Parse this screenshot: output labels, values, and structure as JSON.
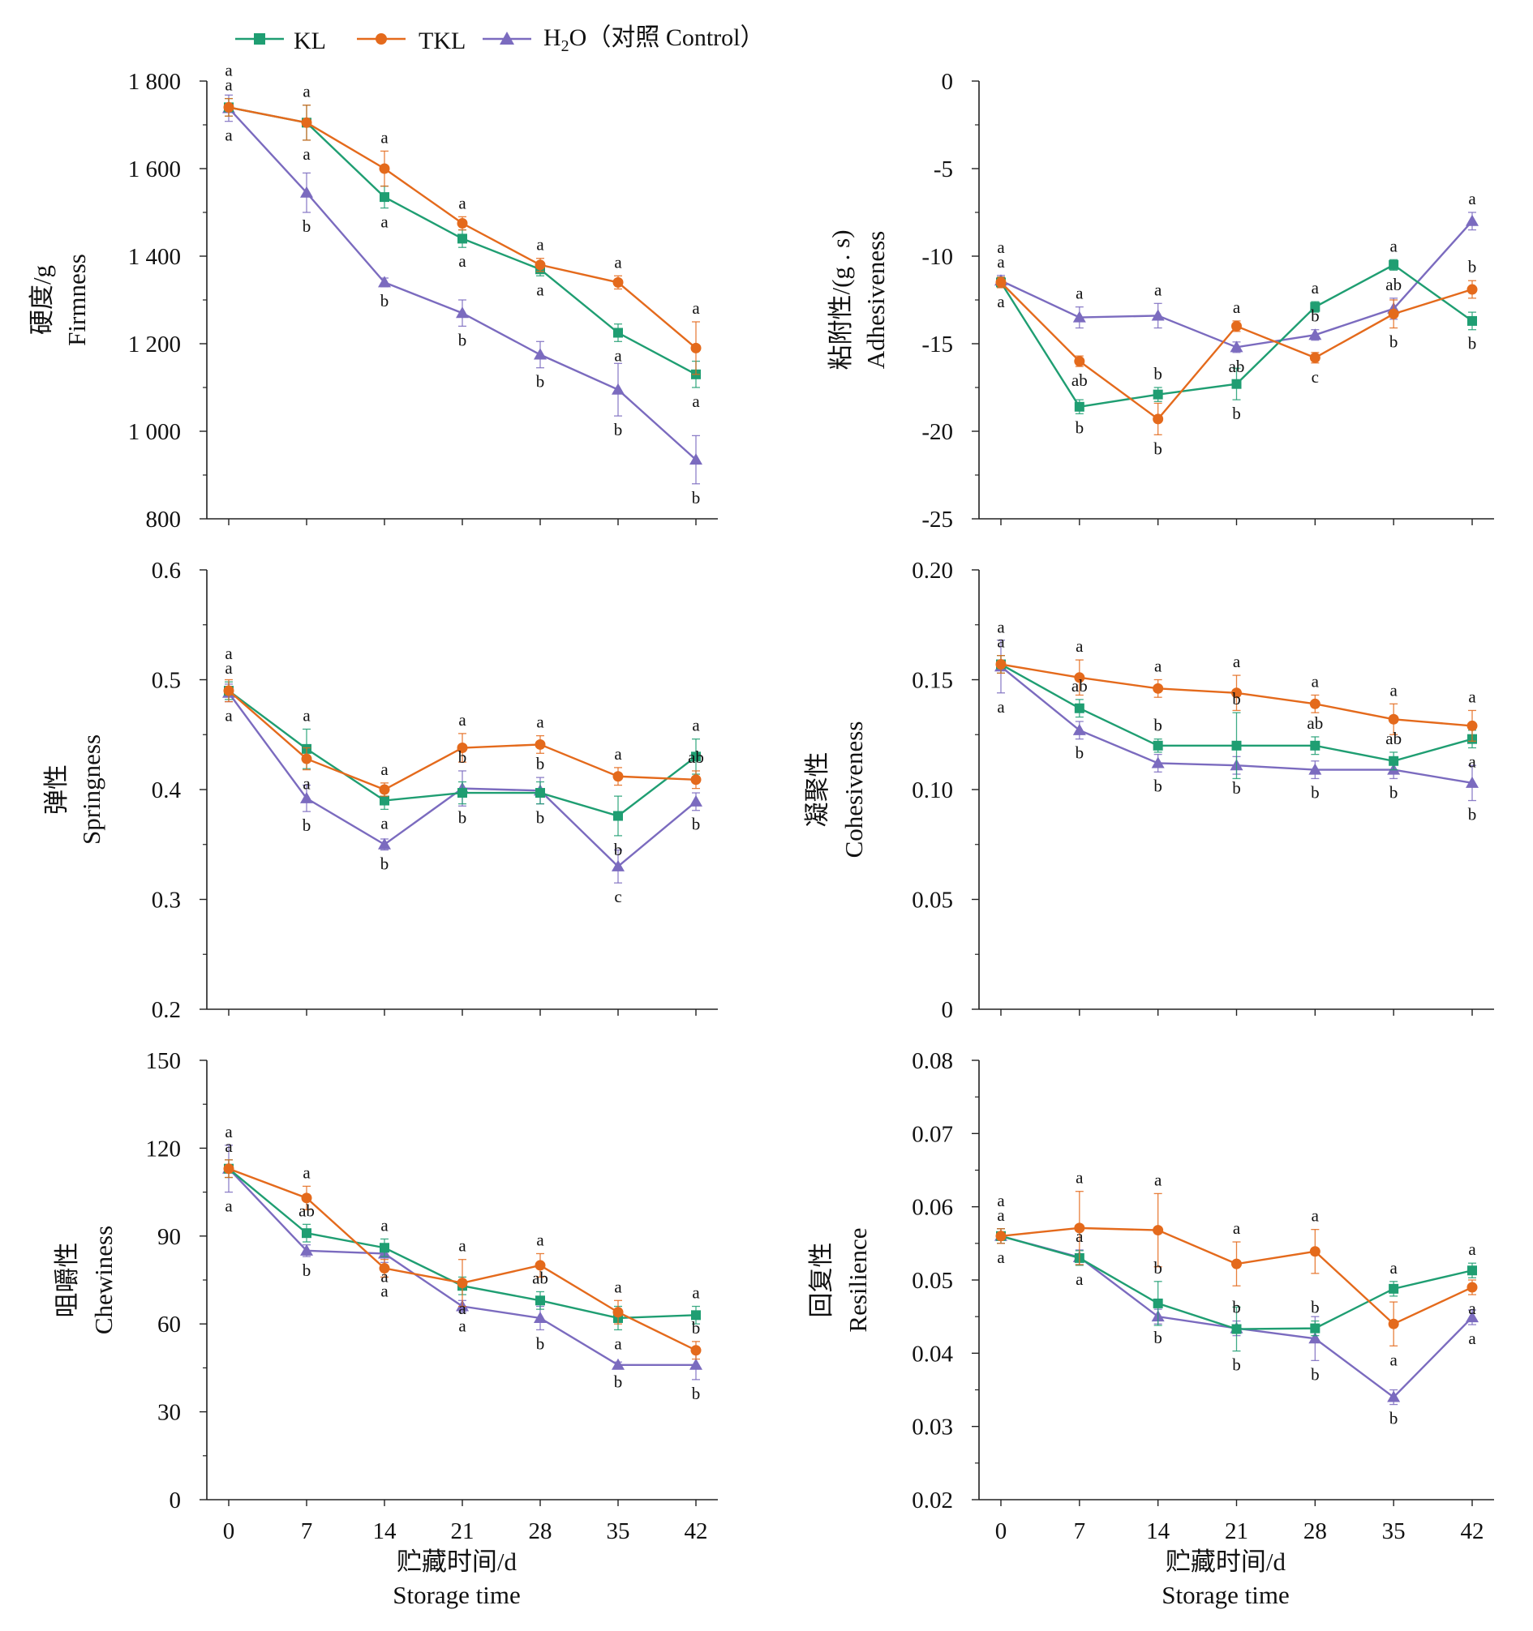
{
  "legend": {
    "items": [
      {
        "label": "KL",
        "color": "#1f9e72",
        "marker": "square"
      },
      {
        "label": "TKL",
        "color": "#e46a1c",
        "marker": "circle"
      },
      {
        "label": "H2O（对照 Control）",
        "color": "#7b6bbf",
        "marker": "triangle"
      }
    ]
  },
  "x_axis": {
    "label_cn": "贮藏时间/d",
    "label_en": "Storage time",
    "ticks": [
      "0",
      "7",
      "14",
      "21",
      "28",
      "35",
      "42"
    ]
  },
  "colors": {
    "KL": "#1f9e72",
    "TKL": "#e46a1c",
    "H2O": "#7b6bbf"
  },
  "chart_data": [
    {
      "type": "line",
      "ylabel_cn": "硬度/g",
      "ylabel_en": "Firmness",
      "x": [
        0,
        7,
        14,
        21,
        28,
        35,
        42
      ],
      "ylim": [
        800,
        1800
      ],
      "yticks": [
        800,
        1000,
        1200,
        1400,
        1600,
        1800
      ],
      "ytick_labels": [
        "800",
        "1 000",
        "1 200",
        "1 400",
        "1 600",
        "1 800"
      ],
      "series": [
        {
          "name": "KL",
          "values": [
            1740,
            1705,
            1535,
            1440,
            1370,
            1225,
            1130
          ],
          "err": [
            20,
            40,
            25,
            20,
            15,
            20,
            30
          ],
          "sig": [
            "a",
            "a",
            "a",
            "a",
            "a",
            "a",
            "a"
          ]
        },
        {
          "name": "TKL",
          "values": [
            1740,
            1705,
            1600,
            1475,
            1380,
            1340,
            1190
          ],
          "err": [
            20,
            40,
            40,
            15,
            15,
            15,
            60
          ],
          "sig": [
            "a",
            "a",
            "a",
            "a",
            "a",
            "a",
            "a"
          ]
        },
        {
          "name": "H2O",
          "values": [
            1738,
            1545,
            1340,
            1270,
            1175,
            1095,
            935
          ],
          "err": [
            30,
            45,
            10,
            30,
            30,
            60,
            55
          ],
          "sig": [
            "a",
            "b",
            "b",
            "b",
            "b",
            "b",
            "b"
          ]
        }
      ]
    },
    {
      "type": "line",
      "ylabel_cn": "粘附性/(g . s)",
      "ylabel_en": "Adhesiveness",
      "x": [
        0,
        7,
        14,
        21,
        28,
        35,
        42
      ],
      "ylim": [
        -25,
        0
      ],
      "yticks": [
        -25,
        -20,
        -15,
        -10,
        -5,
        0
      ],
      "ytick_labels": [
        "-25",
        "-20",
        "-15",
        "-10",
        "-5",
        "0"
      ],
      "series": [
        {
          "name": "KL",
          "values": [
            -11.5,
            -18.6,
            -17.9,
            -17.3,
            -12.9,
            -10.5,
            -13.7
          ],
          "err": [
            0.3,
            0.4,
            0.4,
            0.9,
            0.3,
            0.3,
            0.5
          ],
          "sig": [
            "a",
            "b",
            "b",
            "b",
            "a",
            "a",
            "b"
          ]
        },
        {
          "name": "TKL",
          "values": [
            -11.5,
            -16.0,
            -19.3,
            -14.0,
            -15.8,
            -13.3,
            -11.9
          ],
          "err": [
            0.3,
            0.3,
            0.9,
            0.3,
            0.3,
            0.8,
            0.5
          ],
          "sig": [
            "a",
            "ab",
            "b",
            "a",
            "c",
            "b",
            "b"
          ]
        },
        {
          "name": "H2O",
          "values": [
            -11.4,
            -13.5,
            -13.4,
            -15.2,
            -14.5,
            -13.0,
            -8.0
          ],
          "err": [
            0.3,
            0.6,
            0.7,
            0.3,
            0.3,
            0.6,
            0.5
          ],
          "sig": [
            "a",
            "a",
            "a",
            "ab",
            "b",
            "ab",
            "a"
          ]
        }
      ]
    },
    {
      "type": "line",
      "ylabel_cn": "弹性",
      "ylabel_en": "Springness",
      "x": [
        0,
        7,
        14,
        21,
        28,
        35,
        42
      ],
      "ylim": [
        0.2,
        0.6
      ],
      "yticks": [
        0.2,
        0.3,
        0.4,
        0.5,
        0.6
      ],
      "ytick_labels": [
        "0.2",
        "0.3",
        "0.4",
        "0.5",
        "0.6"
      ],
      "series": [
        {
          "name": "KL",
          "values": [
            0.49,
            0.437,
            0.39,
            0.397,
            0.397,
            0.376,
            0.43
          ],
          "err": [
            0.008,
            0.018,
            0.008,
            0.01,
            0.01,
            0.018,
            0.016
          ],
          "sig": [
            "a",
            "a",
            "a",
            "b",
            "b",
            "b",
            "a"
          ]
        },
        {
          "name": "TKL",
          "values": [
            0.49,
            0.428,
            0.4,
            0.438,
            0.441,
            0.412,
            0.409
          ],
          "err": [
            0.01,
            0.01,
            0.006,
            0.013,
            0.008,
            0.008,
            0.008
          ],
          "sig": [
            "a",
            "a",
            "a",
            "a",
            "a",
            "a",
            "ab"
          ]
        },
        {
          "name": "H2O",
          "values": [
            0.488,
            0.392,
            0.35,
            0.401,
            0.399,
            0.33,
            0.389
          ],
          "err": [
            0.008,
            0.012,
            0.005,
            0.016,
            0.012,
            0.015,
            0.008
          ],
          "sig": [
            "a",
            "b",
            "b",
            "b",
            "b",
            "c",
            "b"
          ]
        }
      ]
    },
    {
      "type": "line",
      "ylabel_cn": "凝聚性",
      "ylabel_en": "Cohesiveness",
      "x": [
        0,
        7,
        14,
        21,
        28,
        35,
        42
      ],
      "ylim": [
        0,
        0.2
      ],
      "yticks": [
        0,
        0.05,
        0.1,
        0.15,
        0.2
      ],
      "ytick_labels": [
        "0",
        "0.05",
        "0.10",
        "0.15",
        "0.20"
      ],
      "series": [
        {
          "name": "KL",
          "values": [
            0.157,
            0.137,
            0.12,
            0.12,
            0.12,
            0.113,
            0.123
          ],
          "err": [
            0.004,
            0.004,
            0.003,
            0.015,
            0.004,
            0.004,
            0.004
          ],
          "sig": [
            "a",
            "ab",
            "b",
            "b",
            "ab",
            "ab",
            "a"
          ]
        },
        {
          "name": "TKL",
          "values": [
            0.157,
            0.151,
            0.146,
            0.144,
            0.139,
            0.132,
            0.129
          ],
          "err": [
            0.004,
            0.008,
            0.004,
            0.008,
            0.004,
            0.007,
            0.007
          ],
          "sig": [
            "a",
            "a",
            "a",
            "a",
            "a",
            "a",
            "a"
          ]
        },
        {
          "name": "H2O",
          "values": [
            0.156,
            0.127,
            0.112,
            0.111,
            0.109,
            0.109,
            0.103
          ],
          "err": [
            0.012,
            0.004,
            0.004,
            0.004,
            0.004,
            0.004,
            0.008
          ],
          "sig": [
            "a",
            "b",
            "b",
            "b",
            "b",
            "b",
            "b"
          ]
        }
      ]
    },
    {
      "type": "line",
      "ylabel_cn": "咀嚼性",
      "ylabel_en": "Chewiness",
      "x": [
        0,
        7,
        14,
        21,
        28,
        35,
        42
      ],
      "ylim": [
        0,
        150
      ],
      "yticks": [
        0,
        30,
        60,
        90,
        120,
        150
      ],
      "ytick_labels": [
        "0",
        "30",
        "60",
        "90",
        "120",
        "150"
      ],
      "series": [
        {
          "name": "KL",
          "values": [
            113,
            91,
            86,
            73,
            68,
            62,
            63
          ],
          "err": [
            3,
            3,
            3,
            3,
            3,
            4,
            3
          ],
          "sig": [
            "a",
            "ab",
            "a",
            "a",
            "ab",
            "a",
            "a"
          ]
        },
        {
          "name": "TKL",
          "values": [
            113,
            103,
            79,
            74,
            80,
            64,
            51
          ],
          "err": [
            3,
            4,
            3,
            8,
            4,
            4,
            3
          ],
          "sig": [
            "a",
            "a",
            "a",
            "a",
            "a",
            "a",
            "b"
          ]
        },
        {
          "name": "H2O",
          "values": [
            113,
            85,
            84,
            66,
            62,
            46,
            46
          ],
          "err": [
            8,
            2,
            3,
            2,
            4,
            1,
            5
          ],
          "sig": [
            "a",
            "b",
            "a",
            "a",
            "b",
            "b",
            "b"
          ]
        }
      ]
    },
    {
      "type": "line",
      "ylabel_cn": "回复性",
      "ylabel_en": "Resilience",
      "x": [
        0,
        7,
        14,
        21,
        28,
        35,
        42
      ],
      "ylim": [
        0.02,
        0.08
      ],
      "yticks": [
        0.02,
        0.03,
        0.04,
        0.05,
        0.06,
        0.07,
        0.08
      ],
      "ytick_labels": [
        "0.02",
        "0.03",
        "0.04",
        "0.05",
        "0.06",
        "0.07",
        "0.08"
      ],
      "series": [
        {
          "name": "KL",
          "values": [
            0.056,
            0.053,
            0.0468,
            0.0433,
            0.0434,
            0.0488,
            0.0513
          ],
          "err": [
            0.001,
            0.001,
            0.003,
            0.003,
            0.001,
            0.001,
            0.001
          ],
          "sig": [
            "a",
            "a",
            "b",
            "b",
            "b",
            "a",
            "a"
          ]
        },
        {
          "name": "TKL",
          "values": [
            0.056,
            0.0571,
            0.0568,
            0.0522,
            0.0539,
            0.044,
            0.049
          ],
          "err": [
            0.001,
            0.005,
            0.005,
            0.003,
            0.003,
            0.003,
            0.001
          ],
          "sig": [
            "a",
            "a",
            "a",
            "a",
            "a",
            "a",
            "a"
          ]
        },
        {
          "name": "H2O",
          "values": [
            0.056,
            0.0531,
            0.045,
            0.0434,
            0.042,
            0.034,
            0.0449
          ],
          "err": [
            0.001,
            0.001,
            0.001,
            0.001,
            0.003,
            0.001,
            0.001
          ],
          "sig": [
            "a",
            "a",
            "b",
            "b",
            "b",
            "b",
            "a"
          ]
        }
      ]
    }
  ]
}
